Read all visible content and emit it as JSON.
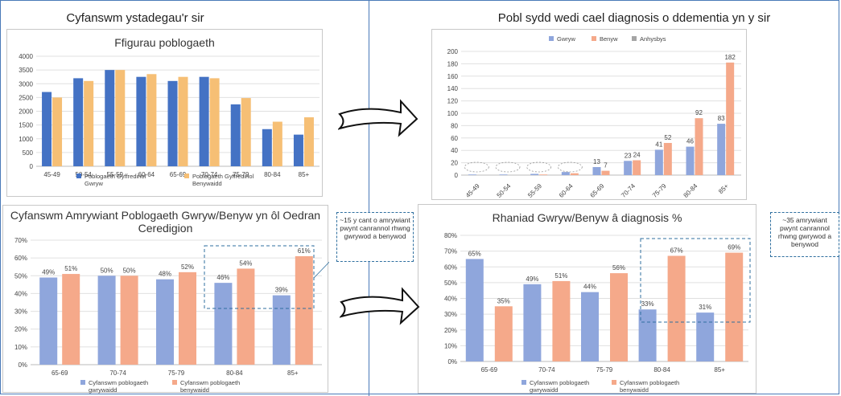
{
  "left_header": "Cyfanswm ystadegau'r sir",
  "right_header": "Pobl sydd wedi cael diagnosis o ddementia yn y sir",
  "notes": {
    "left": "~15 y cant o amrywiant pwynt canrannol rhwng gwrywod a benywod",
    "right": "~35 amrywiant pwynt canrannol rhwng gwrywod a benywod"
  },
  "colors": {
    "blue": "#4472c4",
    "orange": "#f4b183",
    "soft_blue": "#8fa6dc",
    "soft_orange": "#f5a98a",
    "grey": "#a5a5a5",
    "frame": "#4a7ab8"
  },
  "chart_data": [
    {
      "id": "population",
      "type": "bar",
      "title": "Ffigurau poblogaeth",
      "categories": [
        "45-49",
        "50-54",
        "55-59",
        "60-64",
        "65-69",
        "70-74",
        "75-79",
        "80-84",
        "85+"
      ],
      "series": [
        {
          "name": "Poblogaeth Gyffredinol Gwryw",
          "values": [
            2700,
            3200,
            3500,
            3250,
            3100,
            3250,
            2250,
            1350,
            1150
          ],
          "color": "#4472c4"
        },
        {
          "name": "Poblogaeth Gyffredinol Benywaidd",
          "values": [
            2500,
            3100,
            3500,
            3350,
            3250,
            3200,
            2480,
            1620,
            1780
          ],
          "color": "#f6bf75"
        }
      ],
      "ylim": [
        0,
        4000
      ],
      "yticks": [
        0,
        500,
        1000,
        1500,
        2000,
        2500,
        3000,
        3500,
        4000
      ],
      "legend": "bottom"
    },
    {
      "id": "dementia",
      "type": "bar",
      "title": "",
      "categories": [
        "45-49",
        "50-54",
        "55-59",
        "60-64",
        "65-69",
        "70-74",
        "75-79",
        "80-84",
        "85+"
      ],
      "series": [
        {
          "name": "Gwryw",
          "values": [
            1,
            1,
            2,
            5,
            13,
            23,
            41,
            46,
            83
          ],
          "labels": [
            "",
            "",
            "",
            "",
            "13",
            "23",
            "41",
            "46",
            "83"
          ],
          "color": "#8fa6dc"
        },
        {
          "name": "Benyw",
          "values": [
            0,
            0,
            1,
            3,
            7,
            24,
            52,
            92,
            182
          ],
          "labels": [
            "",
            "",
            "",
            "",
            "7",
            "24",
            "52",
            "92",
            "182"
          ],
          "color": "#f5a98a"
        },
        {
          "name": "Anhysbys",
          "values": [
            0,
            0,
            0,
            0,
            0,
            0,
            0,
            0,
            0
          ],
          "labels": [
            "",
            "",
            "",
            "",
            "",
            "",
            "",
            "",
            ""
          ],
          "color": "#a5a5a5"
        }
      ],
      "ylim": [
        0,
        200
      ],
      "yticks": [
        0,
        20,
        40,
        60,
        80,
        100,
        120,
        140,
        160,
        180,
        200
      ],
      "legend": "top"
    },
    {
      "id": "variance",
      "type": "bar",
      "title": "Cyfanswm Amrywiant Poblogaeth Gwryw/Benyw yn ôl Oedran Ceredigion",
      "categories": [
        "65-69",
        "70-74",
        "75-79",
        "80-84",
        "85+"
      ],
      "series": [
        {
          "name": "Cyfanswm poblogaeth gwrywaidd",
          "values": [
            49,
            50,
            48,
            46,
            39
          ],
          "labels": [
            "49%",
            "50%",
            "48%",
            "46%",
            "39%"
          ],
          "color": "#8fa6dc"
        },
        {
          "name": "Cyfanswm poblogaeth benywaidd",
          "values": [
            51,
            50,
            52,
            54,
            61
          ],
          "labels": [
            "51%",
            "50%",
            "52%",
            "54%",
            "61%"
          ],
          "color": "#f5a98a"
        }
      ],
      "ylim": [
        0,
        70
      ],
      "yticks": [
        "0%",
        "10%",
        "20%",
        "30%",
        "40%",
        "50%",
        "60%",
        "70%"
      ],
      "legend": "bottom"
    },
    {
      "id": "diagnosis_split",
      "type": "bar",
      "title": "Rhaniad Gwryw/Benyw â diagnosis %",
      "categories": [
        "65-69",
        "70-74",
        "75-79",
        "80-84",
        "85+"
      ],
      "series": [
        {
          "name": "Cyfanswm poblogaeth gwrywaidd",
          "values": [
            65,
            49,
            44,
            33,
            31
          ],
          "labels": [
            "65%",
            "49%",
            "44%",
            "33%",
            "31%"
          ],
          "color": "#8fa6dc"
        },
        {
          "name": "Cyfanswm poblogaeth benywaidd",
          "values": [
            35,
            51,
            56,
            67,
            69
          ],
          "labels": [
            "35%",
            "51%",
            "56%",
            "67%",
            "69%"
          ],
          "color": "#f5a98a"
        }
      ],
      "ylim": [
        0,
        80
      ],
      "yticks": [
        "0%",
        "10%",
        "20%",
        "30%",
        "40%",
        "50%",
        "60%",
        "70%",
        "80%"
      ],
      "legend": "bottom"
    }
  ]
}
